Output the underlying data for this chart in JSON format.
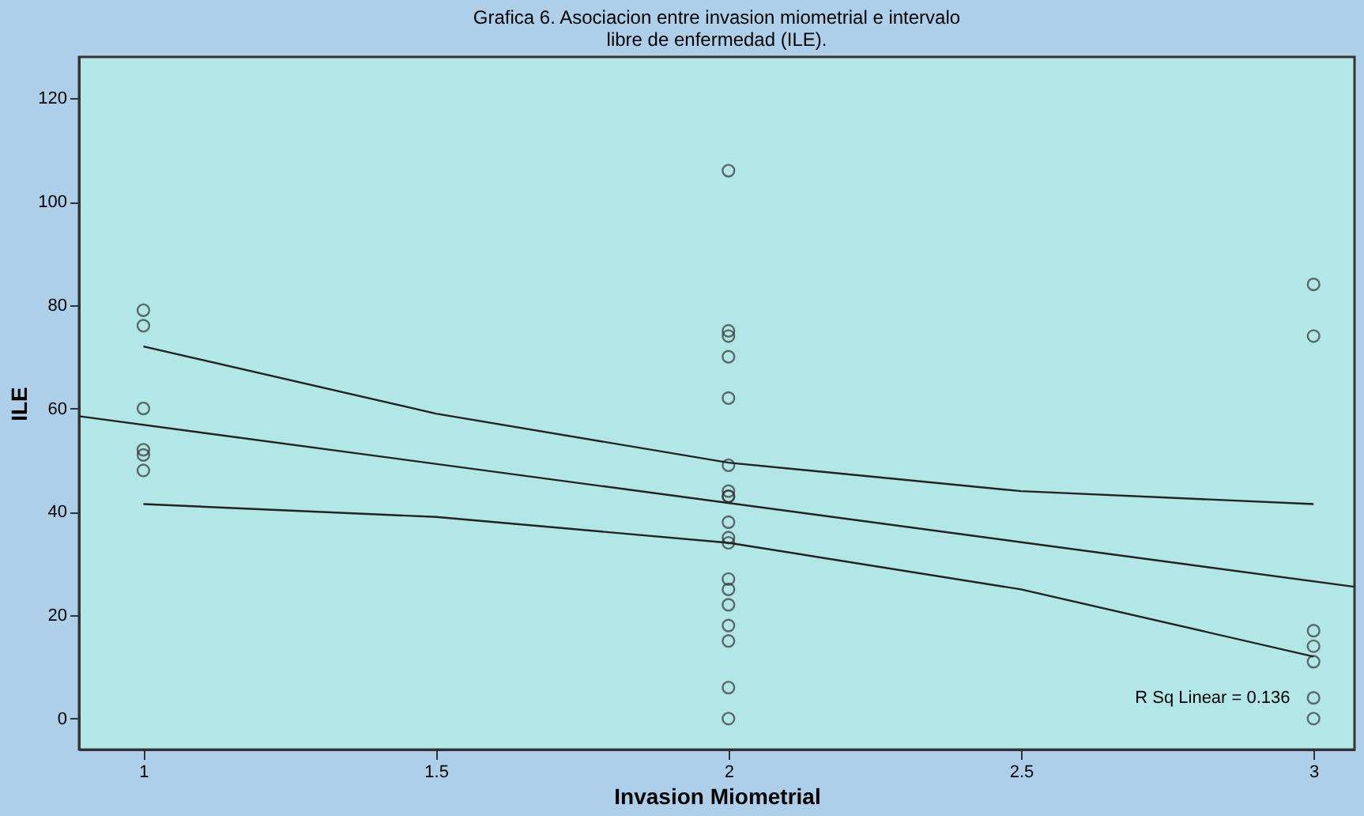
{
  "chart_data": {
    "type": "scatter",
    "title": "Grafica 6. Asociacion entre invasion miometrial e intervalo libre de enfermedad (ILE).",
    "xlabel": "Invasion Miometrial",
    "ylabel": "ILE",
    "xlim": [
      0.89,
      3.07
    ],
    "ylim": [
      -6,
      128
    ],
    "xticks": [
      1,
      1.5,
      2,
      2.5,
      3
    ],
    "yticks": [
      0,
      20,
      40,
      60,
      80,
      100,
      120
    ],
    "grid": false,
    "annotations": [
      "R Sq Linear = 0.136"
    ],
    "series": [
      {
        "marker": "circle",
        "color": "#333333",
        "x": [
          1,
          1,
          1,
          1,
          1,
          1,
          2,
          2,
          2,
          2,
          2,
          2,
          2,
          2,
          2,
          2,
          2,
          2,
          2,
          2,
          2,
          2,
          2,
          2,
          2,
          3,
          3,
          3,
          3,
          3,
          3,
          3
        ],
        "values": [
          79,
          76,
          60,
          52,
          51,
          48,
          106,
          75,
          74,
          70,
          62,
          49,
          44,
          43,
          38,
          35,
          34,
          27,
          25,
          22,
          18,
          15,
          6,
          0,
          43,
          84,
          74,
          17,
          14,
          11,
          4,
          0
        ]
      },
      {
        "type": "line",
        "marker": "none",
        "color": "#222222",
        "line_style": "solid",
        "x": [
          0.89,
          3.07
        ],
        "values": [
          58.5,
          25.5
        ]
      },
      {
        "type": "line",
        "marker": "none",
        "color": "#222222",
        "line_style": "solid",
        "x": [
          1,
          1.5,
          2,
          2.5,
          3
        ],
        "values": [
          72,
          59,
          49.5,
          44,
          41.5
        ]
      },
      {
        "type": "line",
        "marker": "none",
        "color": "#222222",
        "line_style": "solid",
        "x": [
          1,
          1.5,
          2,
          2.5,
          3
        ],
        "values": [
          41.5,
          39,
          34,
          25,
          12
        ]
      }
    ]
  }
}
